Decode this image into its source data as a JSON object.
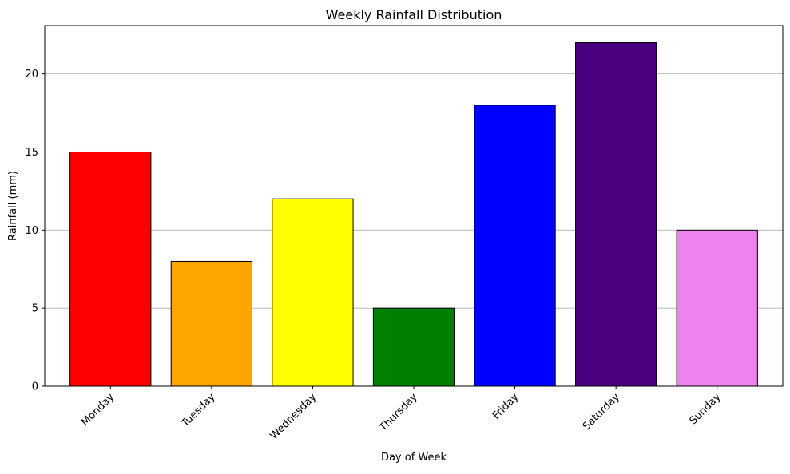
{
  "chart_data": {
    "type": "bar",
    "title": "Weekly Rainfall Distribution",
    "xlabel": "Day of Week",
    "ylabel": "Rainfall (mm)",
    "categories": [
      "Monday",
      "Tuesday",
      "Wednesday",
      "Thursday",
      "Friday",
      "Saturday",
      "Sunday"
    ],
    "values": [
      15,
      8,
      12,
      5,
      18,
      22,
      10
    ],
    "colors": [
      "#ff0000",
      "#ffa500",
      "#ffff00",
      "#008000",
      "#0000ff",
      "#4b0082",
      "#ee82ee"
    ],
    "edge_color": "#000000",
    "ylim": [
      0,
      23.1
    ],
    "yticks": [
      0,
      5,
      10,
      15,
      20
    ],
    "ytick_labels": [
      "0",
      "5",
      "10",
      "15",
      "20"
    ],
    "grid": "y-major",
    "grid_color": "#b0b0b0",
    "xtick_rotation_deg": 45
  }
}
